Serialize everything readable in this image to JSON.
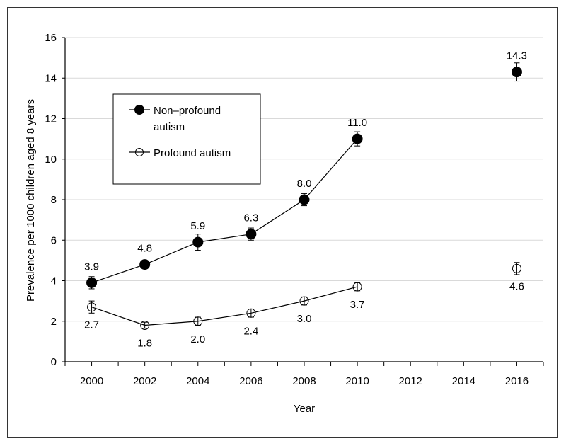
{
  "chart_data": {
    "type": "line",
    "title": "",
    "xlabel": "Year",
    "ylabel": "Prevalence per 1000 children aged 8 years",
    "xlim": [
      1999,
      2017
    ],
    "ylim": [
      0,
      16
    ],
    "x_ticks": [
      2000,
      2002,
      2004,
      2006,
      2008,
      2010,
      2012,
      2014,
      2016
    ],
    "y_ticks": [
      0,
      2,
      4,
      6,
      8,
      10,
      12,
      14,
      16
    ],
    "grid": "horizontal",
    "legend_position": "upper-left",
    "series": [
      {
        "name": "Non–profound autism",
        "marker": "filled-circle",
        "color": "#000000",
        "label_position": "above",
        "connected_through": 2010,
        "points": [
          {
            "x": 2000,
            "y": 3.9,
            "err": 0.3,
            "label": "3.9"
          },
          {
            "x": 2002,
            "y": 4.8,
            "err": 0.2,
            "label": "4.8"
          },
          {
            "x": 2004,
            "y": 5.9,
            "err": 0.4,
            "label": "5.9"
          },
          {
            "x": 2006,
            "y": 6.3,
            "err": 0.3,
            "label": "6.3"
          },
          {
            "x": 2008,
            "y": 8.0,
            "err": 0.3,
            "label": "8.0"
          },
          {
            "x": 2010,
            "y": 11.0,
            "err": 0.35,
            "label": "11.0"
          },
          {
            "x": 2016,
            "y": 14.3,
            "err": 0.45,
            "label": "14.3"
          }
        ]
      },
      {
        "name": "Profound autism",
        "marker": "open-circle",
        "color": "#000000",
        "label_position": "below",
        "connected_through": 2010,
        "points": [
          {
            "x": 2000,
            "y": 2.7,
            "err": 0.3,
            "label": "2.7"
          },
          {
            "x": 2002,
            "y": 1.8,
            "err": 0.15,
            "label": "1.8"
          },
          {
            "x": 2004,
            "y": 2.0,
            "err": 0.2,
            "label": "2.0"
          },
          {
            "x": 2006,
            "y": 2.4,
            "err": 0.2,
            "label": "2.4"
          },
          {
            "x": 2008,
            "y": 3.0,
            "err": 0.2,
            "label": "3.0"
          },
          {
            "x": 2010,
            "y": 3.7,
            "err": 0.2,
            "label": "3.7"
          },
          {
            "x": 2016,
            "y": 4.6,
            "err": 0.3,
            "label": "4.6"
          }
        ]
      }
    ],
    "legend": [
      {
        "text_lines": [
          "Non–profound",
          "autism"
        ],
        "marker": "filled-circle"
      },
      {
        "text_lines": [
          "Profound autism"
        ],
        "marker": "open-circle"
      }
    ]
  }
}
